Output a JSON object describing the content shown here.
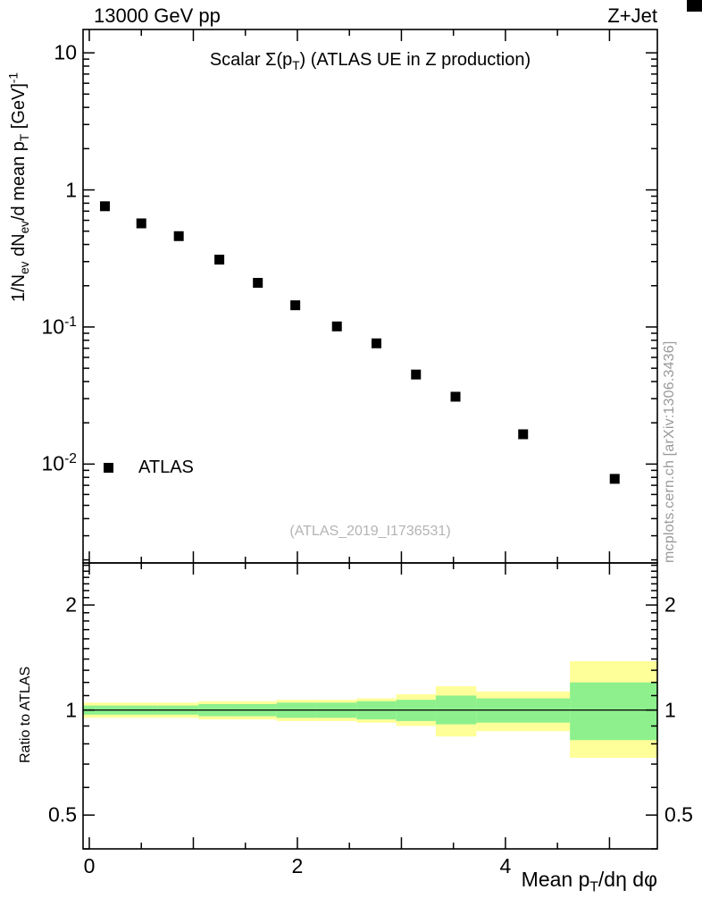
{
  "header": {
    "left": "13000 GeV pp",
    "right": "Z+Jet"
  },
  "legend": {
    "label": "ATLAS"
  },
  "watermark": "(ATLAS_2019_I1736531)",
  "side_note": "mcplots.cern.ch [arXiv:1306.3436]",
  "chart_data": {
    "type": "scatter",
    "title": "Scalar Σ(p_{T}) (ATLAS UE in Z production)",
    "xlabel": "Mean p_{T}/dη dφ",
    "ylabel": "1/N_{ev} dN_{ev}/d mean p_{T} [GeV]^{-1}",
    "ratio_ylabel": "Ratio to ATLAS",
    "grid": false,
    "legend_position": "inside-left-bottom",
    "x_axis": {
      "lim": [
        -0.06,
        5.46
      ],
      "major_ticks": [
        {
          "v": 0,
          "label": "0"
        },
        {
          "v": 2,
          "label": "2"
        },
        {
          "v": 4,
          "label": "4"
        }
      ],
      "minor_step": 0.5
    },
    "y_axis": {
      "scale": "log",
      "lim": [
        0.0019,
        14.8
      ],
      "ticks": [
        {
          "v": 10,
          "label": "10"
        },
        {
          "v": 1,
          "label": "1"
        },
        {
          "v": 0.1,
          "label": "10^{-1}"
        },
        {
          "v": 0.01,
          "label": "10^{-2}"
        }
      ]
    },
    "ratio_axis": {
      "scale": "log",
      "lim": [
        0.4,
        2.64
      ],
      "ref_line": 1,
      "ticks": [
        {
          "v": 2,
          "label": "2"
        },
        {
          "v": 1,
          "label": "1"
        },
        {
          "v": 0.5,
          "label": "0.5"
        }
      ]
    },
    "series": [
      {
        "name": "ATLAS",
        "marker": "filled-square",
        "color": "#000000",
        "x": [
          0.15,
          0.5,
          0.86,
          1.25,
          1.62,
          1.98,
          2.38,
          2.76,
          3.14,
          3.52,
          4.17,
          5.05
        ],
        "y": [
          0.76,
          0.57,
          0.46,
          0.31,
          0.21,
          0.144,
          0.101,
          0.076,
          0.045,
          0.031,
          0.0165,
          0.0078
        ]
      }
    ],
    "ratio_bands": {
      "edges": [
        -0.06,
        0.3,
        0.66,
        1.05,
        1.43,
        1.8,
        2.18,
        2.57,
        2.95,
        3.33,
        3.72,
        4.62,
        5.46
      ],
      "yellow": {
        "lo": [
          0.95,
          0.95,
          0.95,
          0.94,
          0.94,
          0.93,
          0.93,
          0.92,
          0.9,
          0.84,
          0.87,
          0.73
        ],
        "hi": [
          1.05,
          1.05,
          1.05,
          1.06,
          1.06,
          1.07,
          1.07,
          1.08,
          1.11,
          1.17,
          1.13,
          1.38
        ]
      },
      "green": {
        "lo": [
          0.97,
          0.97,
          0.97,
          0.96,
          0.96,
          0.95,
          0.95,
          0.94,
          0.93,
          0.91,
          0.92,
          0.82
        ],
        "hi": [
          1.03,
          1.03,
          1.03,
          1.04,
          1.04,
          1.05,
          1.05,
          1.06,
          1.07,
          1.1,
          1.08,
          1.2
        ]
      }
    },
    "colors": {
      "band_outer": "#ffff99",
      "band_inner": "#8df08d",
      "marker": "#000000",
      "frame": "#000000"
    }
  }
}
